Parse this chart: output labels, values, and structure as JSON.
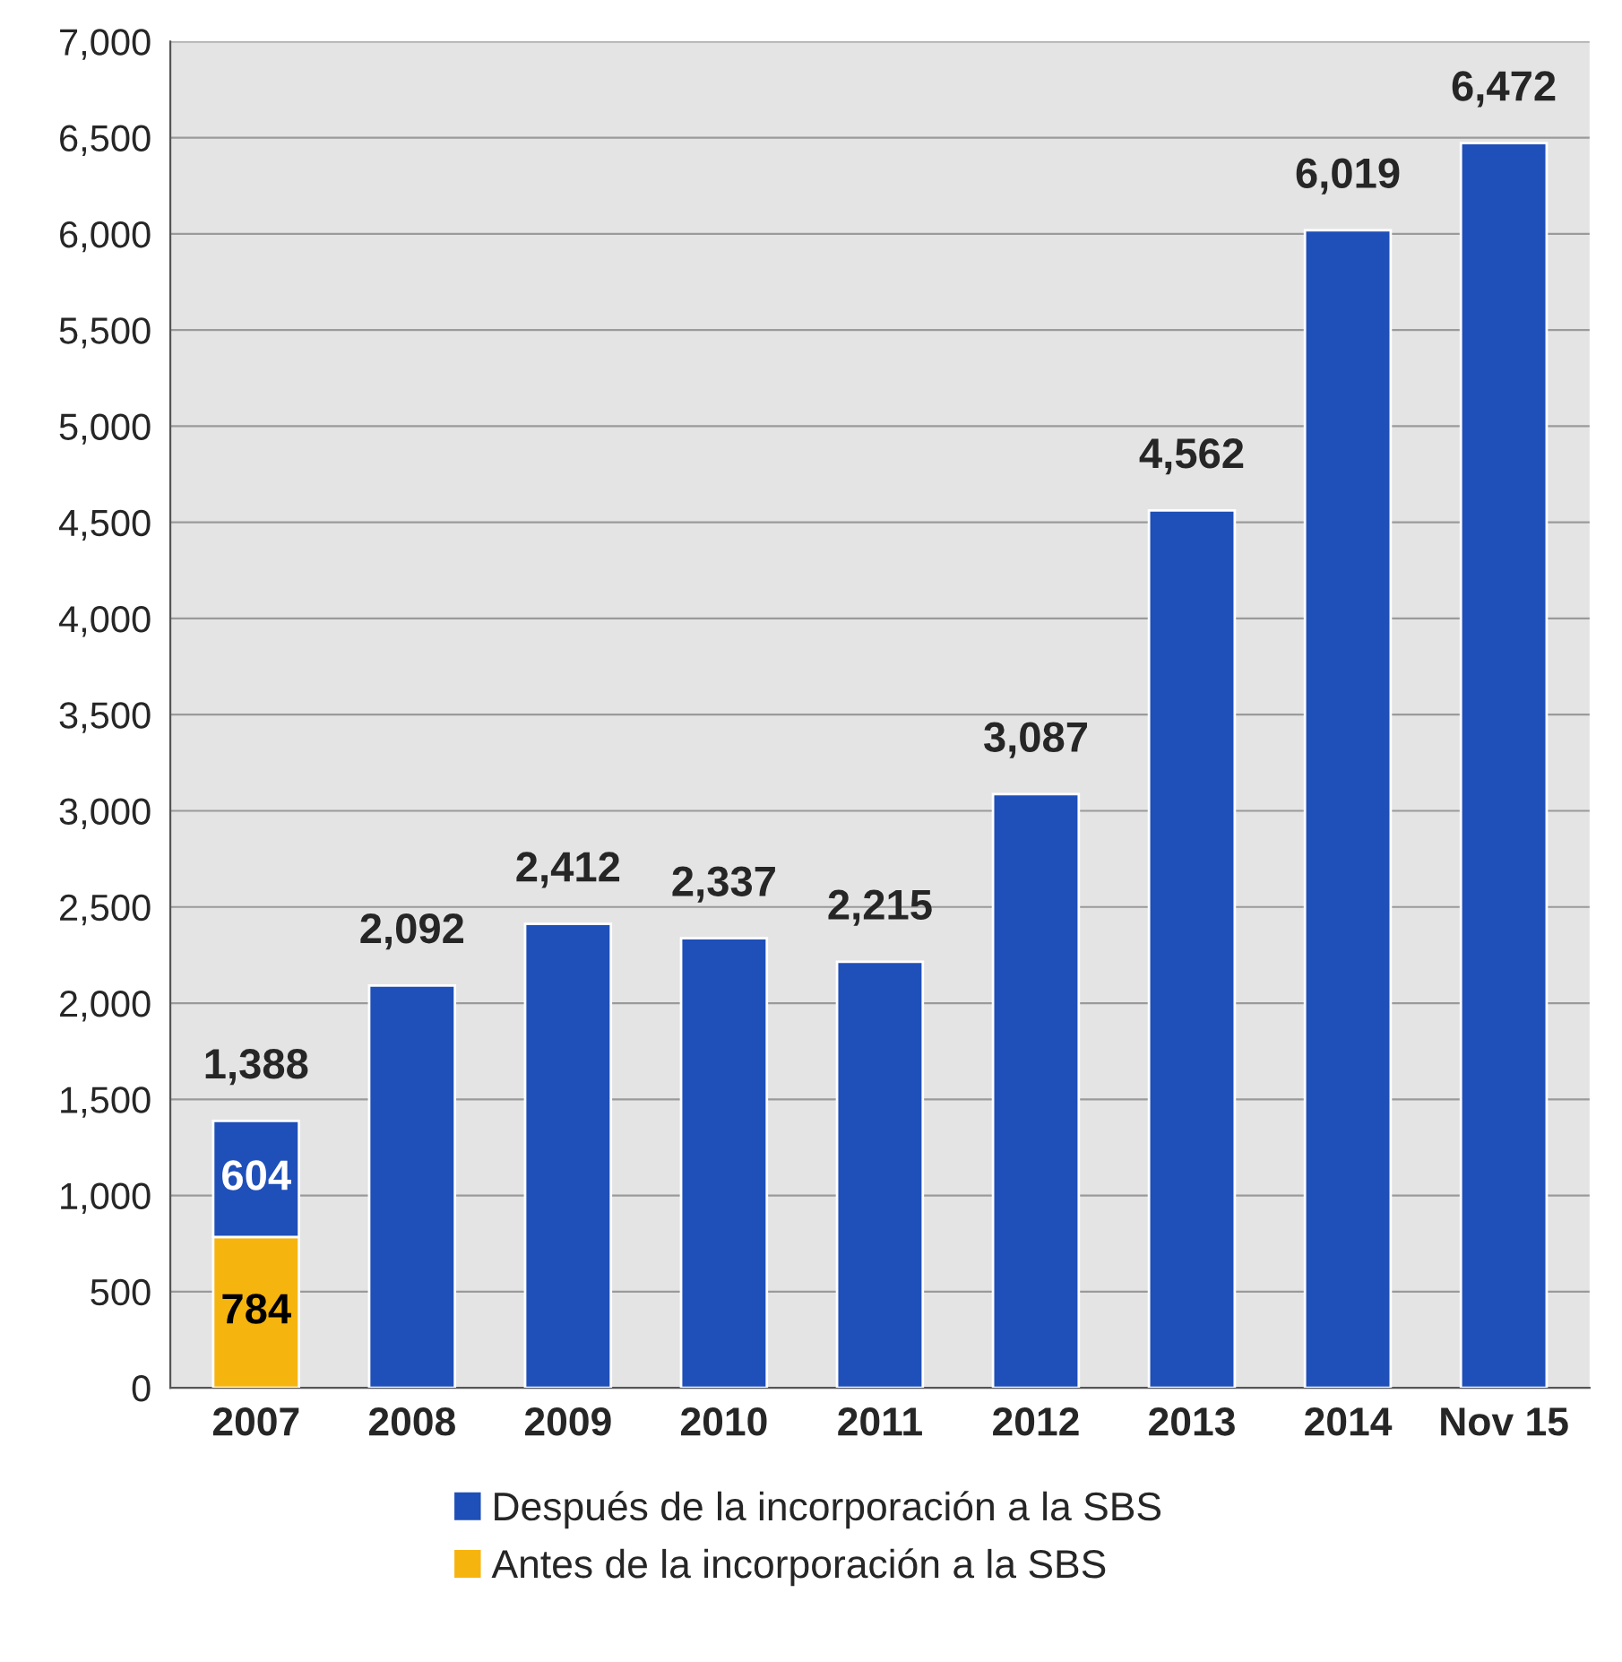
{
  "chart_data": {
    "type": "bar",
    "stacked": true,
    "categories": [
      "2007",
      "2008",
      "2009",
      "2010",
      "2011",
      "2012",
      "2013",
      "2014",
      "Nov 15"
    ],
    "series": [
      {
        "name": "Antes de la incorporación a la SBS",
        "color": "#f6b40e",
        "values": [
          784,
          null,
          null,
          null,
          null,
          null,
          null,
          null,
          null
        ],
        "value_labels": [
          "784",
          null,
          null,
          null,
          null,
          null,
          null,
          null,
          null
        ]
      },
      {
        "name": "Después de la incorporación a la SBS",
        "color": "#1f4fb8",
        "values": [
          604,
          2092,
          2412,
          2337,
          2215,
          3087,
          4562,
          6019,
          6472
        ],
        "value_labels": [
          "604",
          null,
          null,
          null,
          null,
          null,
          null,
          null,
          null
        ]
      }
    ],
    "totals": [
      "1,388",
      "2,092",
      "2,412",
      "2,337",
      "2,215",
      "3,087",
      "4,562",
      "6,019",
      "6,472"
    ],
    "ylim": [
      0,
      7000
    ],
    "yticks": [
      0,
      500,
      {
        "value": 1000,
        "label": "1,000"
      },
      {
        "value": 1500,
        "label": "1,500"
      },
      {
        "value": 2000,
        "label": "2,000"
      },
      {
        "value": 2500,
        "label": "2,500"
      },
      {
        "value": 3000,
        "label": "3,000"
      },
      {
        "value": 3500,
        "label": "3,500"
      },
      {
        "value": 4000,
        "label": "4,000"
      },
      {
        "value": 4500,
        "label": "4,500"
      },
      {
        "value": 5000,
        "label": "5,000"
      },
      {
        "value": 5500,
        "label": "5,500"
      },
      {
        "value": 6000,
        "label": "6,000"
      },
      {
        "value": 6500,
        "label": "6,500"
      },
      {
        "value": 7000,
        "label": "7,000"
      }
    ],
    "grid": "y",
    "legend": "bottom"
  }
}
